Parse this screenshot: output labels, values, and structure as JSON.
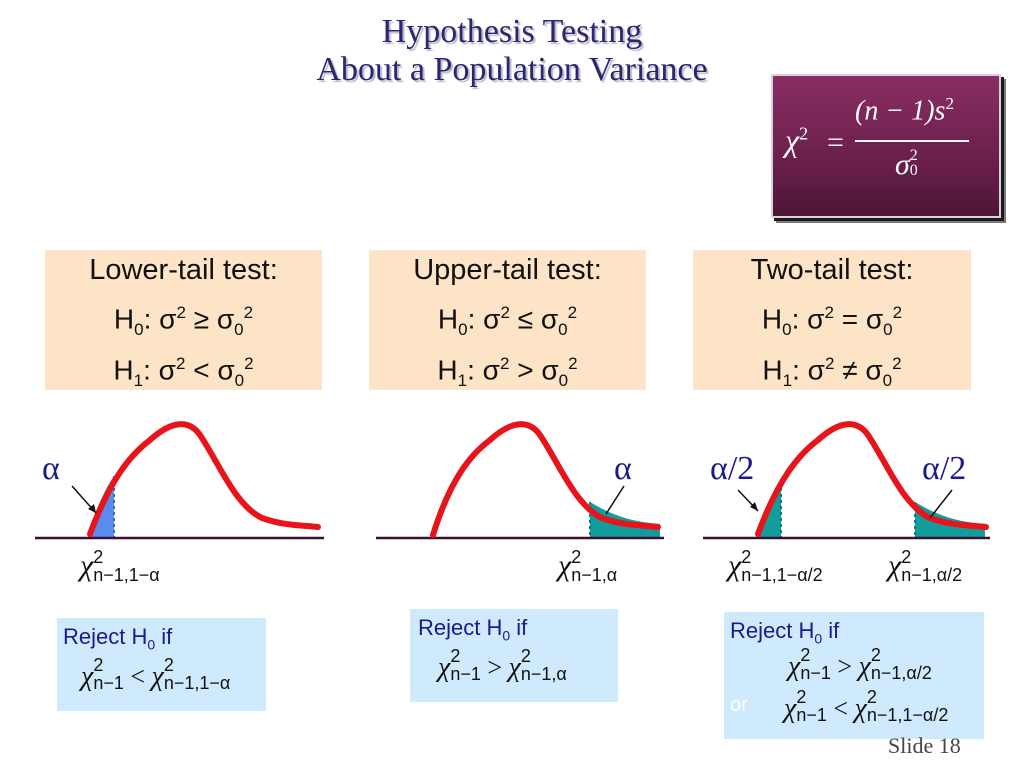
{
  "title": {
    "line1": "Hypothesis Testing",
    "line2": "About a Population Variance"
  },
  "formula": {
    "lhs": "χ",
    "lhs_sup": "2",
    "eq": "=",
    "numerator": "(n − 1)s",
    "numerator_sup": "2",
    "denominator": "σ",
    "denominator_sup": "2",
    "denominator_sub": "0"
  },
  "tests": [
    {
      "heading": "Lower-tail test:",
      "h0": {
        "H": "H",
        "sub": "0",
        "mid": ": σ",
        "sup1": "2",
        "op": " ≥ σ",
        "sub2": "0",
        "sup2": "2"
      },
      "h1": {
        "H": "H",
        "sub": "1",
        "mid": ": σ",
        "sup1": "2",
        "op": " < σ",
        "sub2": "0",
        "sup2": "2"
      },
      "alpha_label": "α",
      "critical": {
        "chi": "χ",
        "sup": "2",
        "sub": "n−1,1−α"
      },
      "reject": {
        "prefix": "Reject H",
        "sub": "0",
        "suffix": " if",
        "chi_l": "χ",
        "sup_l": "2",
        "sub_l": "n−1",
        "op": " < ",
        "chi_r": "χ",
        "sup_r": "2",
        "sub_r": "n−1,1−α"
      }
    },
    {
      "heading": "Upper-tail test:",
      "h0": {
        "H": "H",
        "sub": "0",
        "mid": ": σ",
        "sup1": "2",
        "op": " ≤ σ",
        "sub2": "0",
        "sup2": "2"
      },
      "h1": {
        "H": "H",
        "sub": "1",
        "mid": ": σ",
        "sup1": "2",
        "op": " > σ",
        "sub2": "0",
        "sup2": "2"
      },
      "alpha_label": "α",
      "critical": {
        "chi": "χ",
        "sup": "2",
        "sub": "n−1,α"
      },
      "reject": {
        "prefix": "Reject H",
        "sub": "0",
        "suffix": " if",
        "chi_l": "χ",
        "sup_l": "2",
        "sub_l": "n−1",
        "op": " > ",
        "chi_r": "χ",
        "sup_r": "2",
        "sub_r": "n−1,α"
      }
    },
    {
      "heading": "Two-tail test:",
      "h0": {
        "H": "H",
        "sub": "0",
        "mid": ": σ",
        "sup1": "2",
        "op": " = σ",
        "sub2": "0",
        "sup2": "2"
      },
      "h1": {
        "H": "H",
        "sub": "1",
        "mid": ": σ",
        "sup1": "2",
        "op": " ≠ σ",
        "sub2": "0",
        "sup2": "2"
      },
      "alpha_left": "α/2",
      "alpha_right": "α/2",
      "critical_left": {
        "chi": "χ",
        "sup": "2",
        "sub": "n−1,1−α/2"
      },
      "critical_right": {
        "chi": "χ",
        "sup": "2",
        "sub": "n−1,α/2"
      },
      "reject": {
        "prefix": "Reject H",
        "sub": "0",
        "suffix": " if",
        "row1": {
          "chi_l": "χ",
          "sup_l": "2",
          "sub_l": "n−1",
          "op": " > ",
          "chi_r": "χ",
          "sup_r": "2",
          "sub_r": "n−1,α/2"
        },
        "or": "or",
        "row2": {
          "chi_l": "χ",
          "sup_l": "2",
          "sub_l": "n−1",
          "op": " < ",
          "chi_r": "χ",
          "sup_r": "2",
          "sub_r": "n−1,1−α/2"
        }
      }
    }
  ],
  "slide_number": "Slide 18",
  "colors": {
    "title": "#2a2670",
    "curve": "#e8141c",
    "lower_shade": "#5a8cf0",
    "upper_shade": "#129c9c",
    "box_fill": "#fde4c6",
    "reject_fill": "#cfeafc"
  }
}
